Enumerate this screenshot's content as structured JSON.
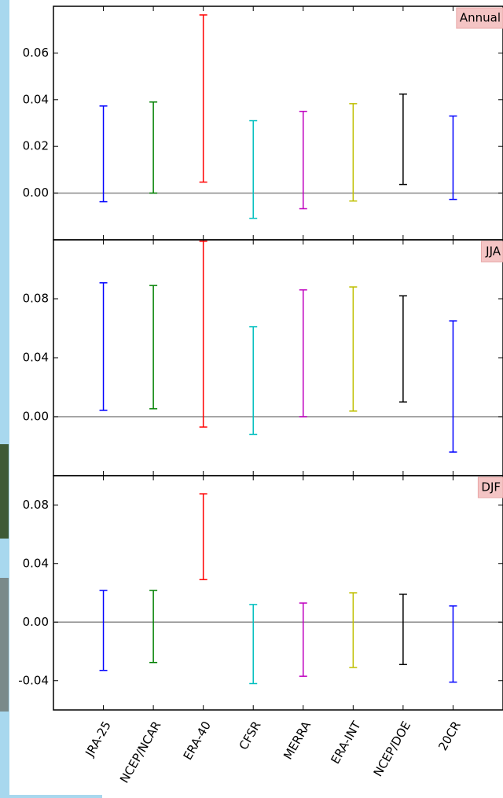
{
  "chart_data": [
    {
      "type": "errorbar",
      "label": "Annual",
      "colors": [
        "#0000ff",
        "#008000",
        "#ff0000",
        "#00bfbf",
        "#bf00bf",
        "#bfbf00",
        "#000000",
        "#0000ff"
      ],
      "low": [
        -0.0037,
        0.0,
        0.0047,
        -0.0108,
        -0.0067,
        -0.0034,
        0.0037,
        -0.0027
      ],
      "high": [
        0.0373,
        0.039,
        0.0763,
        0.031,
        0.035,
        0.0383,
        0.0424,
        0.033
      ],
      "xlim": [
        -1,
        8
      ],
      "ylim": [
        -0.02,
        0.08
      ],
      "yticks": [
        {
          "value": 0,
          "label": "0.00"
        },
        0.02,
        0.04,
        0.06
      ]
    },
    {
      "type": "errorbar",
      "label": "JJA",
      "colors": [
        "#0000ff",
        "#008000",
        "#ff0000",
        "#00bfbf",
        "#bf00bf",
        "#bfbf00",
        "#000000",
        "#0000ff"
      ],
      "low": [
        0.0043,
        0.0054,
        -0.007,
        -0.012,
        0.0,
        0.0038,
        0.01,
        -0.024
      ],
      "high": [
        0.0908,
        0.089,
        0.119,
        0.061,
        0.086,
        0.088,
        0.082,
        0.065
      ],
      "xlim": [
        -1,
        8
      ],
      "ylim": [
        -0.04,
        0.12
      ],
      "yticks": [
        {
          "value": 0,
          "label": "0.00"
        },
        0.04,
        0.08
      ]
    },
    {
      "type": "errorbar",
      "label": "DJF",
      "categories": [
        "JRA-25",
        "NCEP/NCAR",
        "ERA-40",
        "CFSR",
        "MERRA",
        "ERA-INT",
        "NCEP/DOE",
        "20CR"
      ],
      "colors": [
        "#0000ff",
        "#008000",
        "#ff0000",
        "#00bfbf",
        "#bf00bf",
        "#bfbf00",
        "#000000",
        "#0000ff"
      ],
      "low": [
        -0.033,
        -0.0276,
        0.029,
        -0.042,
        -0.037,
        -0.031,
        -0.029,
        -0.041
      ],
      "high": [
        0.0216,
        0.0216,
        0.0876,
        0.012,
        0.013,
        0.02,
        0.019,
        0.011
      ],
      "xlim": [
        -1,
        8
      ],
      "ylim": [
        -0.06,
        0.1
      ],
      "yticks": [
        -0.04,
        {
          "value": 0,
          "label": "0.00"
        },
        0.04,
        0.08
      ]
    }
  ]
}
